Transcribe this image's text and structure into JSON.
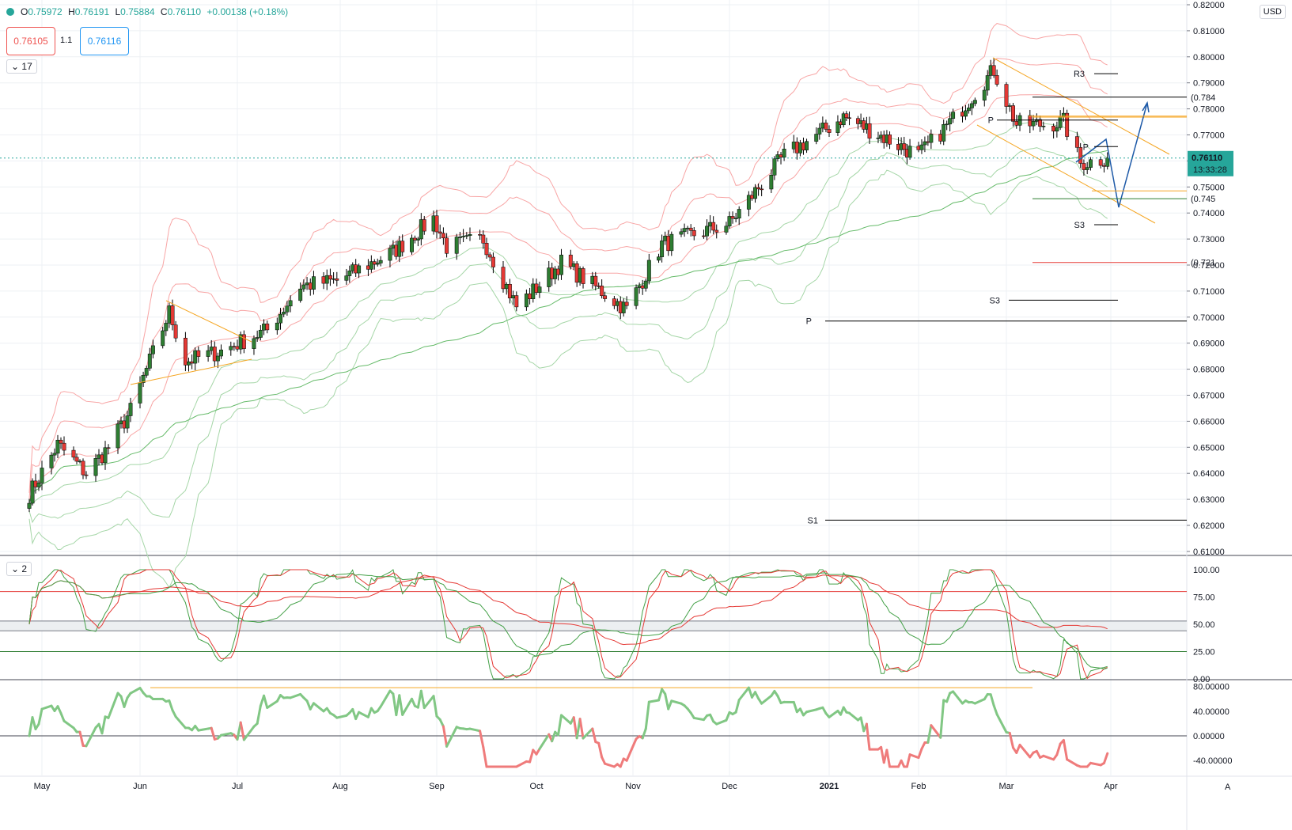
{
  "legend": {
    "open_label": "O",
    "open": "0.75972",
    "high_label": "H",
    "high": "0.76191",
    "low_label": "L",
    "low": "0.75884",
    "close_label": "C",
    "close": "0.76110",
    "change": "+0.00138 (+0.18%)"
  },
  "trade": {
    "sell": "0.76105",
    "spread": "1.1",
    "buy": "0.76116"
  },
  "pane_badges": {
    "main": "17",
    "stoch": "2"
  },
  "currency": "USD",
  "colors": {
    "up": "#26a69a",
    "down": "#ef5350",
    "candle_up": "#2e7d32",
    "candle_down": "#e53935",
    "band_red": "#f8a5a5",
    "band_green": "#a5d6a7",
    "orange": "#f5a623",
    "arrow": "#1e5aa8"
  },
  "chart_data": [
    {
      "type": "candlestick",
      "title": "",
      "x_ticks": [
        "May",
        "Jun",
        "Jul",
        "Aug",
        "Sep",
        "Oct",
        "Nov",
        "Dec",
        "2021",
        "Feb",
        "Mar",
        "Apr"
      ],
      "y_ticks": [
        "0.82000",
        "0.81000",
        "0.80000",
        "0.79000",
        "0.78000",
        "0.77000",
        "0.76000",
        "0.75000",
        "0.74000",
        "0.73000",
        "0.72000",
        "0.71000",
        "0.70000",
        "0.69000",
        "0.68000",
        "0.67000",
        "0.66000",
        "0.65000",
        "0.64000",
        "0.63000",
        "0.62000",
        "0.61000"
      ],
      "ylim": [
        0.607,
        0.8215
      ],
      "last_price": "0.76110",
      "countdown": "13:33:28",
      "trend_anchors": [
        {
          "t": "2020-04-27",
          "close": 0.632
        },
        {
          "t": "2020-05-06",
          "close": 0.651
        },
        {
          "t": "2020-05-15",
          "close": 0.64
        },
        {
          "t": "2020-05-22",
          "close": 0.65
        },
        {
          "t": "2020-05-29",
          "close": 0.664
        },
        {
          "t": "2020-06-10",
          "close": 0.702
        },
        {
          "t": "2020-06-15",
          "close": 0.683
        },
        {
          "t": "2020-06-26",
          "close": 0.687
        },
        {
          "t": "2020-07-10",
          "close": 0.695
        },
        {
          "t": "2020-07-20",
          "close": 0.712
        },
        {
          "t": "2020-07-31",
          "close": 0.714
        },
        {
          "t": "2020-08-18",
          "close": 0.725
        },
        {
          "t": "2020-08-31",
          "close": 0.738
        },
        {
          "t": "2020-09-04",
          "close": 0.727
        },
        {
          "t": "2020-09-15",
          "close": 0.73
        },
        {
          "t": "2020-09-25",
          "close": 0.704
        },
        {
          "t": "2020-10-09",
          "close": 0.721
        },
        {
          "t": "2020-10-30",
          "close": 0.703
        },
        {
          "t": "2020-11-10",
          "close": 0.728
        },
        {
          "t": "2020-12-01",
          "close": 0.736
        },
        {
          "t": "2020-12-18",
          "close": 0.762
        },
        {
          "t": "2021-01-06",
          "close": 0.777
        },
        {
          "t": "2021-01-15",
          "close": 0.772
        },
        {
          "t": "2021-02-01",
          "close": 0.762
        },
        {
          "t": "2021-02-12",
          "close": 0.776
        },
        {
          "t": "2021-02-25",
          "close": 0.795
        },
        {
          "t": "2021-03-04",
          "close": 0.774
        },
        {
          "t": "2021-03-12",
          "close": 0.774
        },
        {
          "t": "2021-03-18",
          "close": 0.775
        },
        {
          "t": "2021-03-23",
          "close": 0.759
        },
        {
          "t": "2021-03-31",
          "close": 0.7611
        }
      ],
      "levels": [
        {
          "label": "R3",
          "price": 0.7935
        },
        {
          "label": "(0.784",
          "price": 0.7845
        },
        {
          "label": "P",
          "price": 0.7757
        },
        {
          "label": "P",
          "price": 0.7655
        },
        {
          "label": "(0.745",
          "price": 0.7455
        },
        {
          "label": "S3",
          "price": 0.7355
        },
        {
          "label": "(0.721",
          "price": 0.721
        },
        {
          "label": "S3",
          "price": 0.7065
        },
        {
          "label": "P",
          "price": 0.6985
        },
        {
          "label": "S1",
          "price": 0.622
        }
      ]
    },
    {
      "type": "line",
      "title": "",
      "y_ticks": [
        "100.00",
        "75.00",
        "50.00",
        "25.00",
        "0.00"
      ],
      "ylim": [
        0,
        100
      ],
      "bands": [
        80,
        53,
        44,
        25
      ]
    },
    {
      "type": "line",
      "title": "",
      "y_ticks": [
        "80.00000",
        "40.00000",
        "0.00000",
        "-40.00000"
      ],
      "ylim": [
        -55,
        85
      ],
      "high_line": 78
    }
  ],
  "footer": {
    "auto_label": "A"
  }
}
